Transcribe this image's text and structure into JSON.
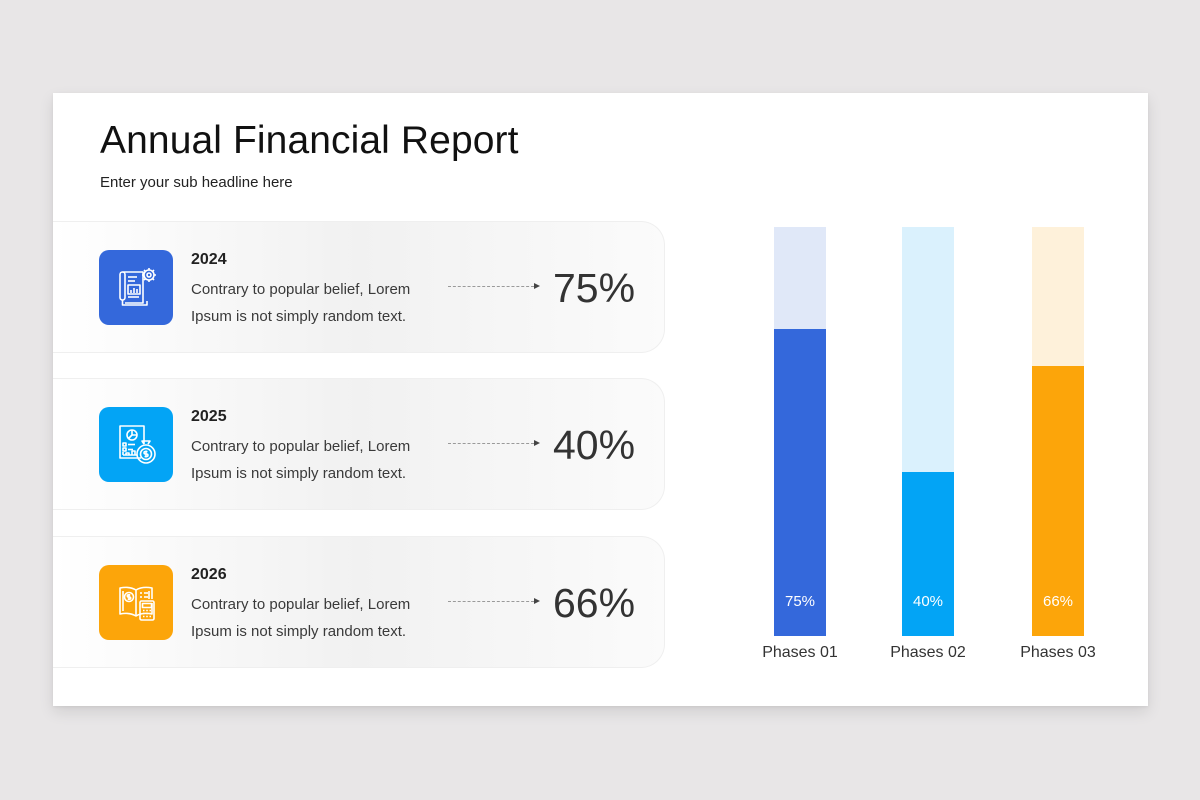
{
  "header": {
    "title": "Annual Financial Report",
    "subtitle": "Enter your sub headline here"
  },
  "cards": [
    {
      "year": "2024",
      "line1": "Contrary to popular belief, Lorem",
      "line2": "Ipsum is not simply random text.",
      "percent": "75%",
      "icon": "report-gear-icon",
      "color": "#3468db"
    },
    {
      "year": "2025",
      "line1": "Contrary to popular belief, Lorem",
      "line2": "Ipsum is not simply random text.",
      "percent": "40%",
      "icon": "report-money-bag-icon",
      "color": "#03a4f5"
    },
    {
      "year": "2026",
      "line1": "Contrary to popular belief, Lorem",
      "line2": "Ipsum is not simply random text.",
      "percent": "66%",
      "icon": "ledger-calculator-icon",
      "color": "#fca50a"
    }
  ],
  "chart_data": {
    "type": "bar",
    "title": "",
    "xlabel": "",
    "ylabel": "",
    "ylim": [
      0,
      100
    ],
    "grid": false,
    "legend": "none",
    "categories": [
      "Phases 01",
      "Phases 02",
      "Phases 03"
    ],
    "values": [
      75,
      40,
      66
    ],
    "value_labels": [
      "75%",
      "40%",
      "66%"
    ],
    "colors": [
      "#3468db",
      "#03a4f5",
      "#fca50a"
    ],
    "track_colors": [
      "#e0e8f8",
      "#daf1fd",
      "#fef1da"
    ],
    "stacked_track": true
  }
}
